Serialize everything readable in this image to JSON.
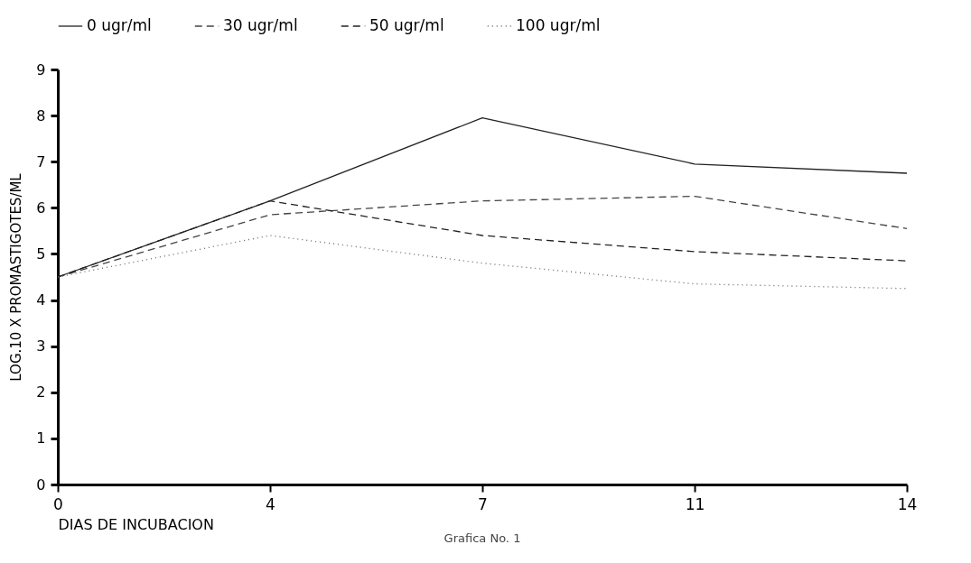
{
  "chart_data": {
    "type": "line",
    "xlabel": "DIAS DE INCUBACION",
    "ylabel": "LOG.10 X PROMASTIGOTES/ML",
    "categories": [
      "0",
      "4",
      "7",
      "11",
      "14"
    ],
    "ylim": [
      0,
      9
    ],
    "yticks": [
      0,
      1,
      2,
      3,
      4,
      5,
      6,
      7,
      8,
      9
    ],
    "legend": "top",
    "grid": false,
    "marker": "none",
    "series": [
      {
        "name": "0 ugr/ml",
        "color": "#222222",
        "line_style": "solid",
        "values": [
          4.5,
          6.15,
          7.95,
          6.95,
          6.75
        ]
      },
      {
        "name": "30 ugr/ml",
        "color": "#444444",
        "line_style": "dashed",
        "values": [
          4.5,
          5.85,
          6.15,
          6.25,
          5.55
        ]
      },
      {
        "name": "50 ugr/ml",
        "color": "#222222",
        "line_style": "dashed",
        "values": [
          4.5,
          6.15,
          5.4,
          5.05,
          4.85
        ]
      },
      {
        "name": "100 ugr/ml",
        "color": "#666666",
        "line_style": "dotted",
        "values": [
          4.5,
          5.4,
          4.8,
          4.35,
          4.25
        ]
      }
    ],
    "annotations": [
      "Grafica No. 1"
    ]
  }
}
